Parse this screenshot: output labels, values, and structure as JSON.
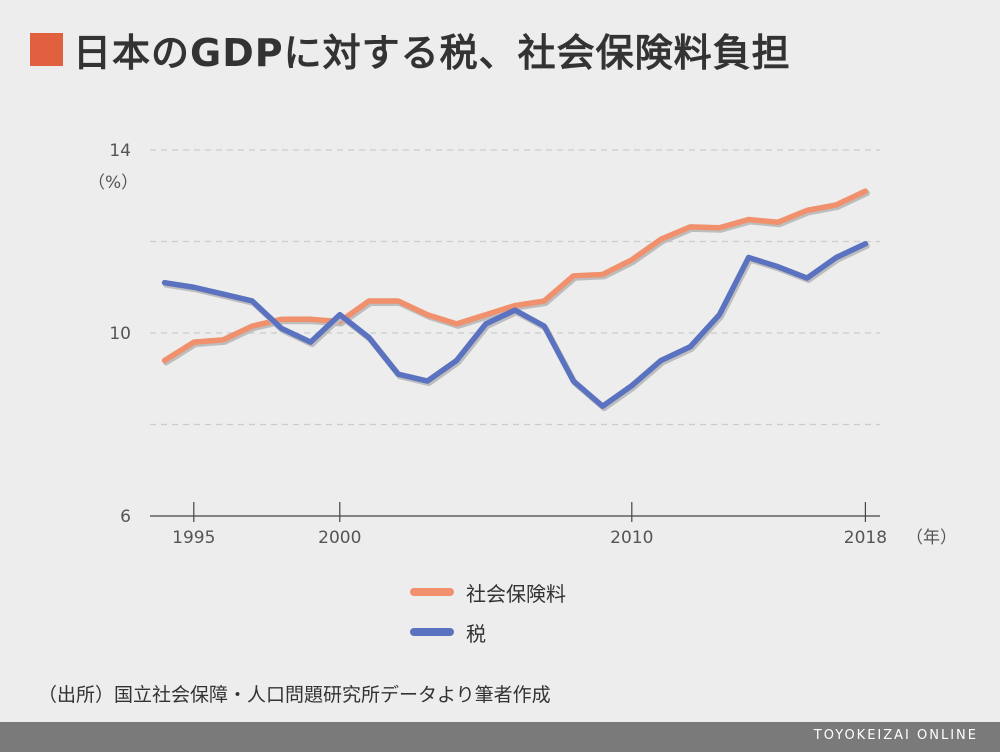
{
  "title": "日本のGDPに対する税、社会保険料負担",
  "source": "（出所）国立社会保障・人口問題研究所データより筆者作成",
  "footer": "TOYOKEIZAI ONLINE",
  "colors": {
    "title_mark": "#e06040",
    "social_insurance": "#f0906c",
    "tax": "#5a72bf",
    "grid": "#cccccc",
    "background": "#ededed"
  },
  "chart_data": {
    "type": "line",
    "title": "日本のGDPに対する税、社会保険料負担",
    "y_unit": "（%）",
    "x_unit": "（年）",
    "x": [
      1994,
      1995,
      1996,
      1997,
      1998,
      1999,
      2000,
      2001,
      2002,
      2003,
      2004,
      2005,
      2006,
      2007,
      2008,
      2009,
      2010,
      2011,
      2012,
      2013,
      2014,
      2015,
      2016,
      2017,
      2018
    ],
    "xlim": [
      1993.5,
      2018.5
    ],
    "ylim": [
      6,
      14
    ],
    "y_ticks": [
      14,
      10,
      6
    ],
    "y_gridlines": [
      14,
      12,
      10,
      8
    ],
    "x_ticks": [
      1995,
      2000,
      2010,
      2018
    ],
    "grid": true,
    "legend_position": "bottom",
    "series": [
      {
        "name": "社会保険料",
        "color": "#f0906c",
        "values": [
          9.4,
          9.8,
          9.85,
          10.15,
          10.3,
          10.3,
          10.25,
          10.7,
          10.7,
          10.4,
          10.2,
          10.4,
          10.6,
          10.7,
          11.25,
          11.28,
          11.6,
          12.05,
          12.32,
          12.3,
          12.48,
          12.42,
          12.68,
          12.8,
          13.1
        ]
      },
      {
        "name": "税",
        "color": "#5a72bf",
        "values": [
          11.1,
          11.0,
          10.85,
          10.7,
          10.1,
          9.8,
          10.4,
          9.9,
          9.1,
          8.95,
          9.4,
          10.2,
          10.5,
          10.15,
          8.95,
          8.4,
          8.85,
          9.4,
          9.7,
          10.4,
          11.65,
          11.45,
          11.2,
          11.65,
          11.95
        ]
      }
    ]
  }
}
